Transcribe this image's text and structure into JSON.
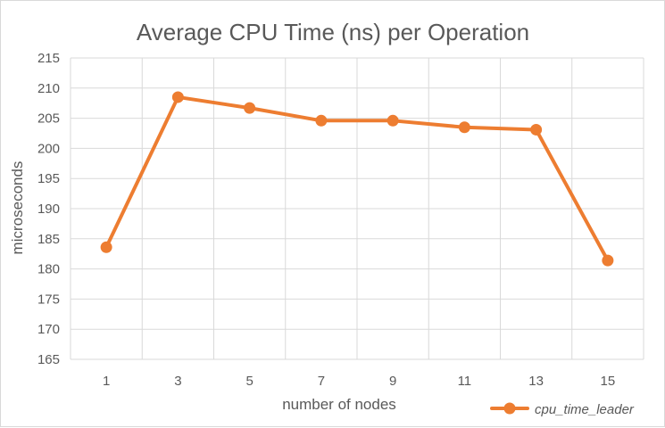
{
  "chart_data": {
    "type": "line",
    "title": "Average CPU Time (ns) per Operation",
    "xlabel": "number of nodes",
    "ylabel": "microseconds",
    "categories": [
      "1",
      "3",
      "5",
      "7",
      "9",
      "11",
      "13",
      "15"
    ],
    "yticks": [
      "165",
      "170",
      "175",
      "180",
      "185",
      "190",
      "195",
      "200",
      "205",
      "210",
      "215"
    ],
    "ylim": [
      165,
      215
    ],
    "grid": true,
    "legend_position": "bottom-right",
    "series": [
      {
        "name": "cpu_time_leader",
        "color": "#ED7D31",
        "values": [
          183.6,
          208.5,
          206.7,
          204.6,
          204.6,
          203.5,
          203.1,
          181.4
        ]
      }
    ]
  }
}
